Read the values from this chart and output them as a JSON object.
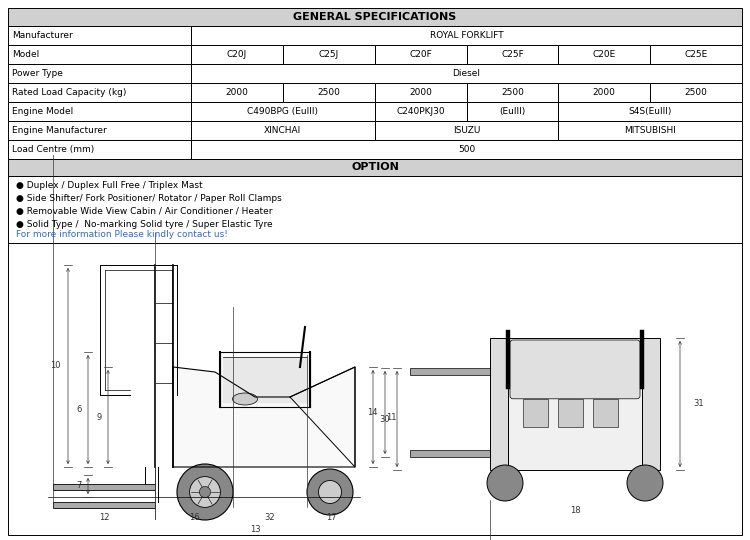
{
  "title": "GENERAL SPECIFICATIONS",
  "option_title": "OPTION",
  "header_bg": "#d0d0d0",
  "table_rows_labels": [
    "Manufacturer",
    "Model",
    "Power Type",
    "Rated Load Capacity (kg)",
    "Engine Model",
    "Engine Manufacturer",
    "Load Centre (mm)"
  ],
  "option_lines": [
    "● Duplex / Duplex Full Free / Triplex Mast",
    "● Side Shifter/ Fork Positioner/ Rotator / Paper Roll Clamps",
    "● Removable Wide View Cabin / Air Conditioner / Heater",
    "● Solid Type /  No-marking Solid tyre / Super Elastic Tyre"
  ],
  "contact_line": "For more information Please kindly contact us!",
  "contact_color": "#3366cc",
  "bg_color": "#ffffff",
  "border_color": "#000000",
  "fig_w": 7.5,
  "fig_h": 5.4,
  "dpi": 100
}
